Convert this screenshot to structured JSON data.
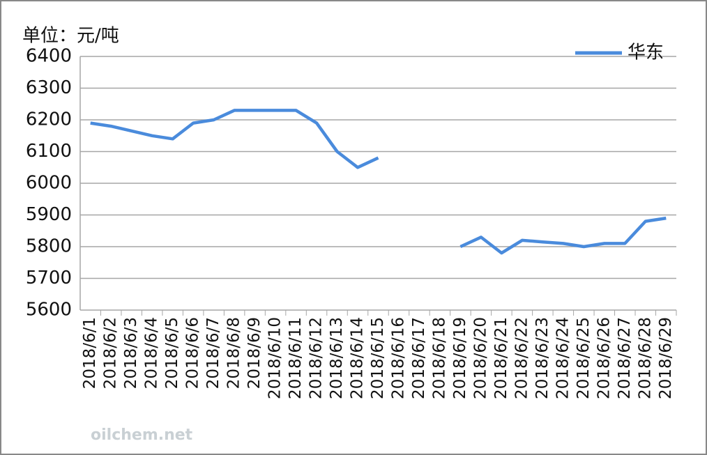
{
  "chart_data": {
    "type": "line",
    "unit_label": "单位：元/吨",
    "watermark": "oilchem.net",
    "categories": [
      "2018/6/1",
      "2018/6/2",
      "2018/6/3",
      "2018/6/4",
      "2018/6/5",
      "2018/6/6",
      "2018/6/7",
      "2018/6/8",
      "2018/6/9",
      "2018/6/10",
      "2018/6/11",
      "2018/6/12",
      "2018/6/13",
      "2018/6/14",
      "2018/6/15",
      "2018/6/16",
      "2018/6/17",
      "2018/6/18",
      "2018/6/19",
      "2018/6/20",
      "2018/6/21",
      "2018/6/22",
      "2018/6/23",
      "2018/6/24",
      "2018/6/25",
      "2018/6/26",
      "2018/6/27",
      "2018/6/28",
      "2018/6/29"
    ],
    "series": [
      {
        "name": "华东",
        "color": "#4a8bdc",
        "values": [
          6190,
          6180,
          6165,
          6150,
          6140,
          6190,
          6200,
          6230,
          6230,
          6230,
          6230,
          6190,
          6100,
          6050,
          6080,
          null,
          null,
          null,
          5800,
          5830,
          5780,
          5820,
          5815,
          5810,
          5800,
          5810,
          5810,
          5880,
          5890
        ]
      }
    ],
    "ylim": [
      5600,
      6400
    ],
    "yticks": [
      5600,
      5700,
      5800,
      5900,
      6000,
      6100,
      6200,
      6300,
      6400
    ],
    "grid": true,
    "legend": "top-right"
  }
}
